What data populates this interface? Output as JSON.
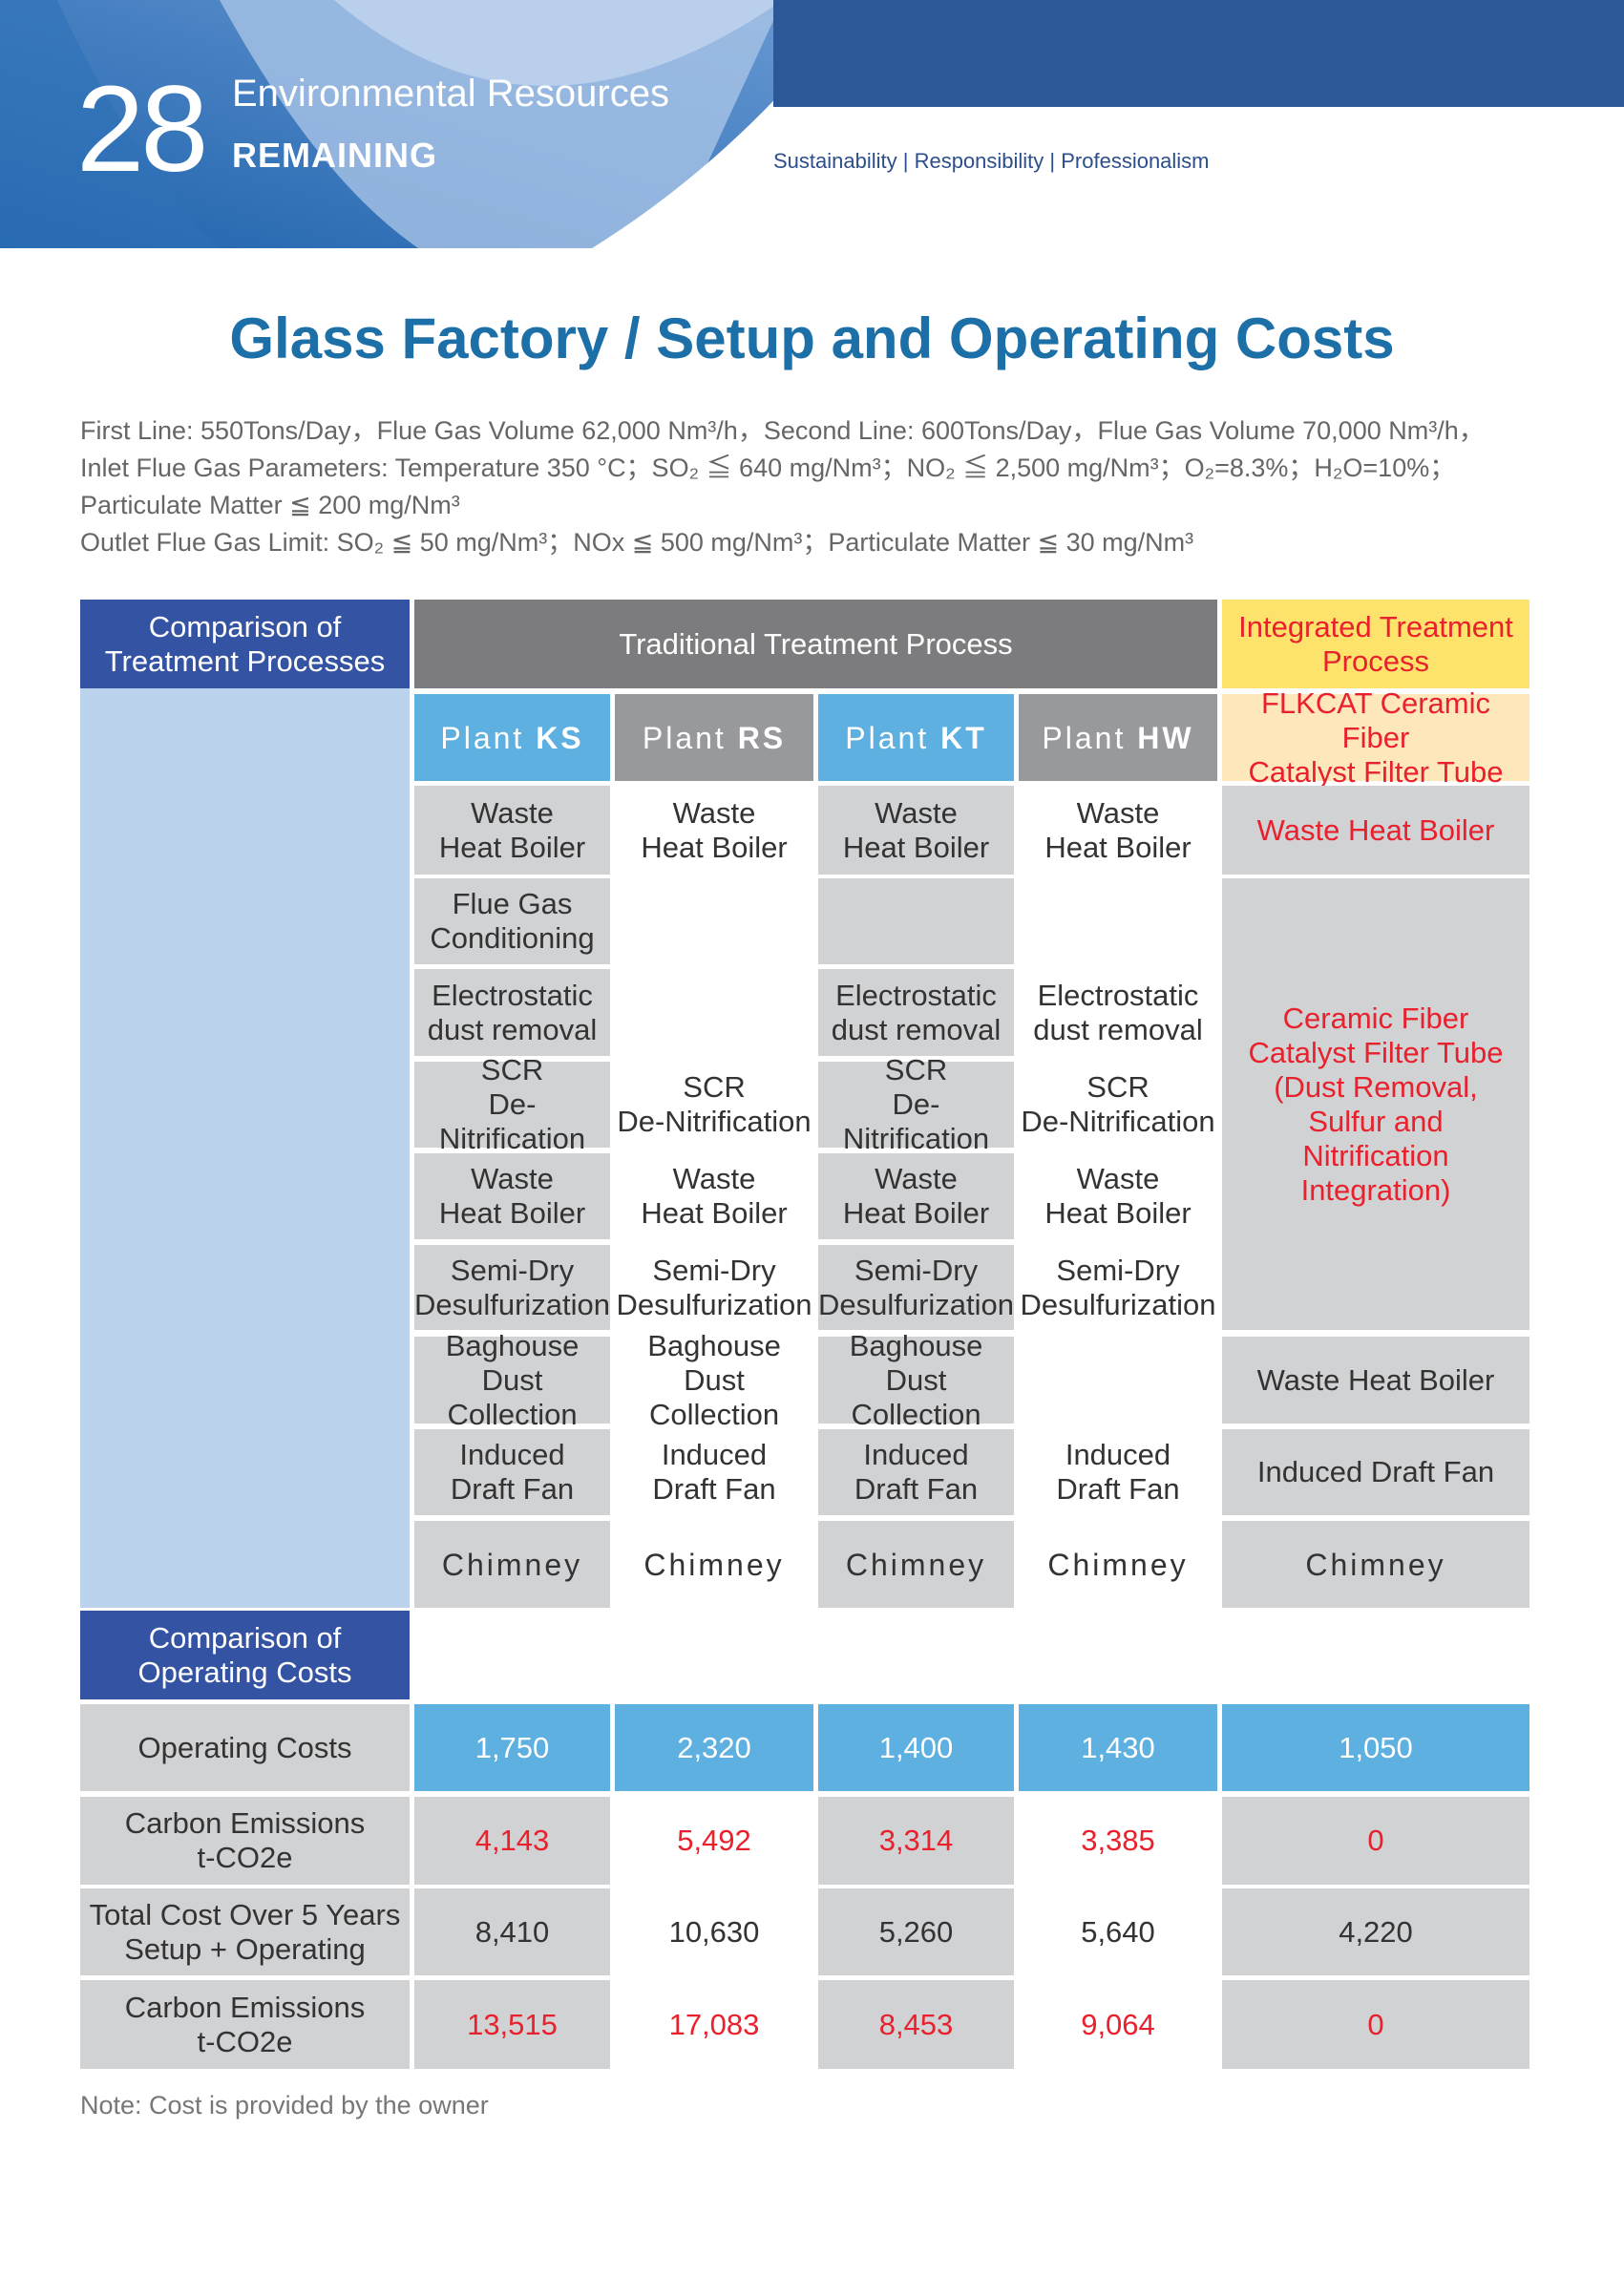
{
  "header": {
    "page_number": "28",
    "section": "Environmental Resources",
    "subsection": "REMAINING",
    "tagline": "Sustainability | Responsibility | Professionalism"
  },
  "title": "Glass Factory /  Setup and Operating Costs",
  "intro": [
    "First Line: 550Tons/Day，Flue Gas Volume 62,000 Nm³/h，Second Line: 600Tons/Day，Flue Gas Volume 70,000 Nm³/h，",
    "Inlet Flue Gas Parameters: Temperature 350 °C；SO₂ ≦ 640 mg/Nm³；NO₂ ≦ 2,500 mg/Nm³；O₂=8.3%；H₂O=10%；",
    "Particulate Matter ≦ 200 mg/Nm³",
    "Outlet Flue Gas Limit: SO₂ ≦ 50 mg/Nm³；NOx ≦ 500 mg/Nm³；Particulate Matter ≦ 30 mg/Nm³"
  ],
  "table": {
    "comparison_processes": "Comparison of\nTreatment Processes",
    "traditional": "Traditional Treatment Process",
    "integrated": "Integrated Treatment\nProcess",
    "plants": [
      {
        "prefix": "Plant ",
        "code": "KS"
      },
      {
        "prefix": "Plant ",
        "code": "RS"
      },
      {
        "prefix": "Plant ",
        "code": "KT"
      },
      {
        "prefix": "Plant ",
        "code": "HW"
      }
    ],
    "integrated_product": "FLKCAT Ceramic Fiber\nCatalyst Filter Tube",
    "process_rows": [
      [
        "Waste\nHeat Boiler",
        "Waste\nHeat Boiler",
        "Waste\nHeat Boiler",
        "Waste\nHeat Boiler"
      ],
      [
        "Flue Gas\nConditioning",
        "",
        "",
        ""
      ],
      [
        "Electrostatic\ndust removal",
        "",
        "Electrostatic\ndust removal",
        "Electrostatic\ndust removal"
      ],
      [
        "SCR\nDe-Nitrification",
        "SCR\nDe-Nitrification",
        "SCR\nDe-Nitrification",
        "SCR\nDe-Nitrification"
      ],
      [
        "Waste\nHeat Boiler",
        "Waste\nHeat Boiler",
        "Waste\nHeat Boiler",
        "Waste\nHeat Boiler"
      ],
      [
        "Semi-Dry\nDesulfurization",
        "Semi-Dry\nDesulfurization",
        "Semi-Dry\nDesulfurization",
        "Semi-Dry\nDesulfurization"
      ],
      [
        "Baghouse\nDust Collection",
        "Baghouse\nDust Collection",
        "Baghouse\nDust Collection",
        ""
      ],
      [
        "Induced\nDraft Fan",
        "Induced\nDraft Fan",
        "Induced\nDraft Fan",
        "Induced\nDraft Fan"
      ],
      [
        "Chimney",
        "Chimney",
        "Chimney",
        "Chimney"
      ]
    ],
    "integrated_steps": [
      "Waste Heat Boiler",
      "Ceramic Fiber\nCatalyst Filter Tube\n(Dust Removal,\nSulfur and\nNitrification\nIntegration)",
      "Waste Heat Boiler",
      "Induced Draft Fan",
      "Chimney"
    ],
    "comparison_costs": "Comparison of\nOperating Costs",
    "cost_rows": [
      {
        "label": "Operating Costs",
        "values": [
          "1,750",
          "2,320",
          "1,400",
          "1,430",
          "1,050"
        ]
      },
      {
        "label": "Carbon Emissions\nt-CO2e",
        "values": [
          "4,143",
          "5,492",
          "3,314",
          "3,385",
          "0"
        ]
      },
      {
        "label": "Total Cost Over 5 Years\nSetup + Operating",
        "values": [
          "8,410",
          "10,630",
          "5,260",
          "5,640",
          "4,220"
        ]
      },
      {
        "label": "Carbon Emissions\nt-CO2e",
        "values": [
          "13,515",
          "17,083",
          "8,453",
          "9,064",
          "0"
        ]
      }
    ]
  },
  "note": "Note: Cost is provided by the owner",
  "colors": {
    "navy": "#3453a3",
    "gray_header": "#7c7c7e",
    "yellow": "#fde26c",
    "cream": "#fee8bb",
    "blue": "#5eb0e0",
    "plant_gray": "#98999c",
    "cell_gray": "#d1d2d4",
    "light_blue": "#bcd3ee",
    "red": "#e8212d"
  }
}
